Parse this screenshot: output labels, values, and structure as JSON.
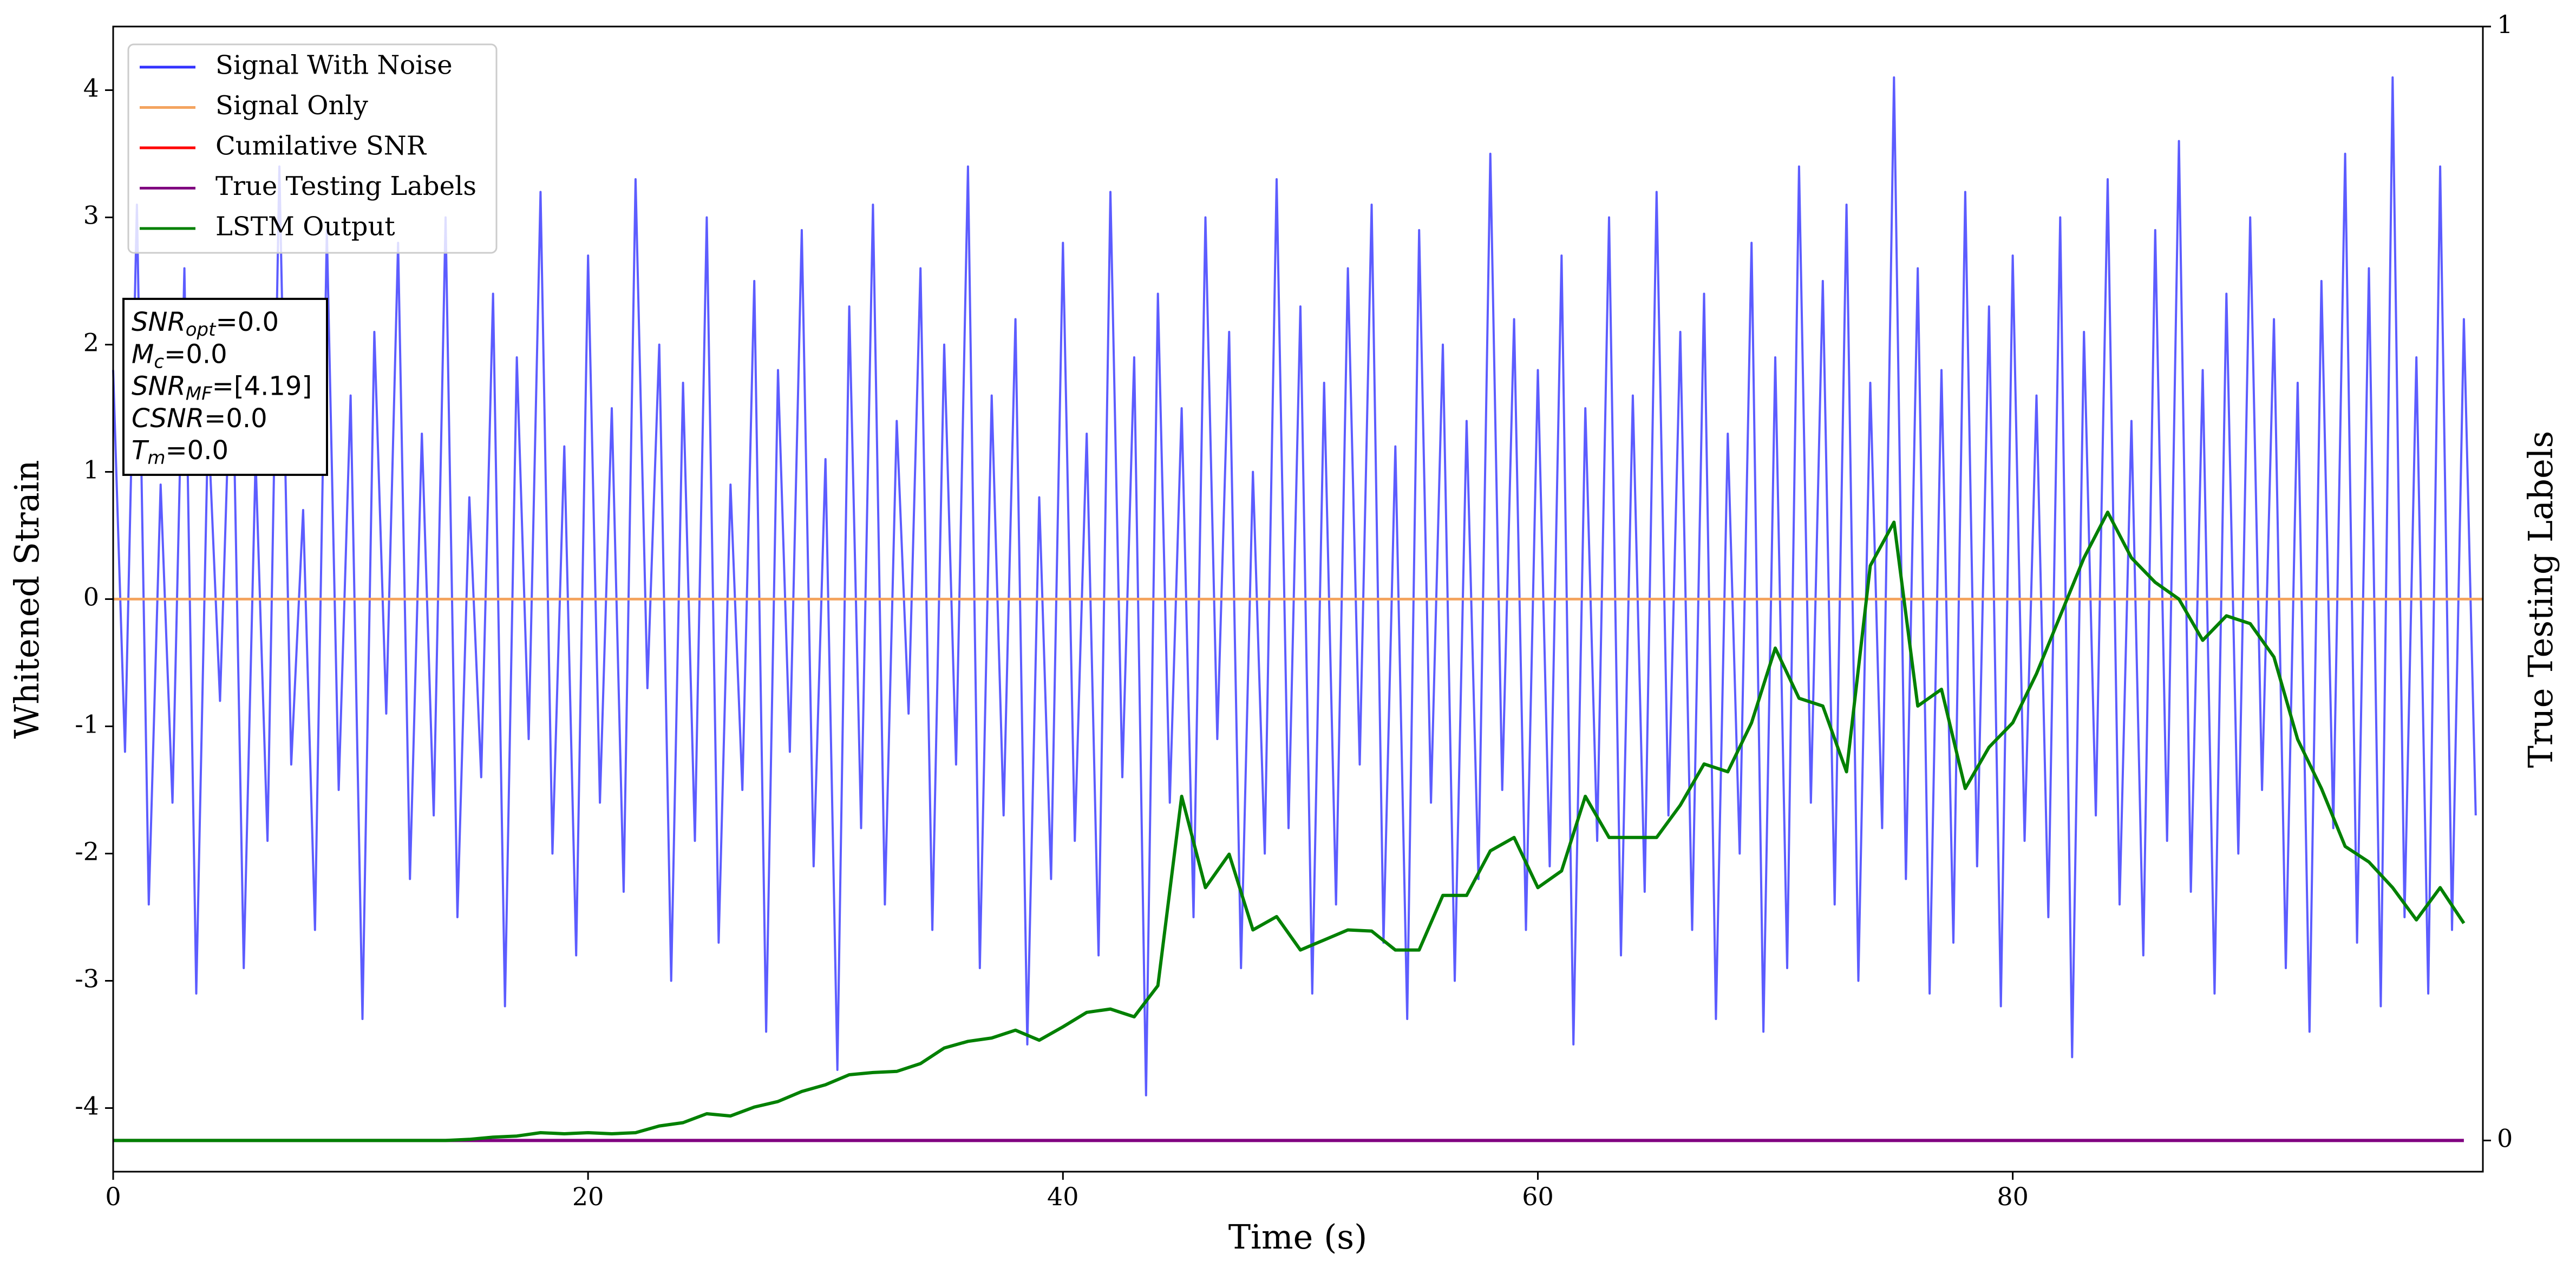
{
  "chart_data": {
    "type": "line",
    "xlabel": "Time (s)",
    "ylabel": "Whitened Strain",
    "y2label": "True Testing Labels",
    "xlim": [
      0,
      99.8
    ],
    "xticks": [
      0,
      20,
      40,
      60,
      80
    ],
    "ylim": [
      -4.5,
      4.5
    ],
    "yticks": [
      -4,
      -3,
      -2,
      -1,
      0,
      1,
      2,
      3,
      4
    ],
    "y2lim": [
      -0.028,
      1.0
    ],
    "y2ticks": [
      0,
      1
    ],
    "legend": "upper left",
    "series": [
      {
        "name": "Signal With Noise",
        "color": "#3333ff",
        "x": [
          0,
          0.5,
          1,
          1.5,
          2,
          2.5,
          3,
          3.5,
          4,
          4.5,
          5,
          5.5,
          6,
          6.5,
          7,
          7.5,
          8,
          8.5,
          9,
          9.5,
          10,
          10.5,
          11,
          11.5,
          12,
          12.5,
          13,
          13.5,
          14,
          14.5,
          15,
          15.5,
          16,
          16.5,
          17,
          17.5,
          18,
          18.5,
          19,
          19.5,
          20,
          20.5,
          21,
          21.5,
          22,
          22.5,
          23,
          23.5,
          24,
          24.5,
          25,
          25.5,
          26,
          26.5,
          27,
          27.5,
          28,
          28.5,
          29,
          29.5,
          30,
          30.5,
          31,
          31.5,
          32,
          32.5,
          33,
          33.5,
          34,
          34.5,
          35,
          35.5,
          36,
          36.5,
          37,
          37.5,
          38,
          38.5,
          39,
          39.5,
          40,
          40.5,
          41,
          41.5,
          42,
          42.5,
          43,
          43.5,
          44,
          44.5,
          45,
          45.5,
          46,
          46.5,
          47,
          47.5,
          48,
          48.5,
          49,
          49.5,
          50,
          50.5,
          51,
          51.5,
          52,
          52.5,
          53,
          53.5,
          54,
          54.5,
          55,
          55.5,
          56,
          56.5,
          57,
          57.5,
          58,
          58.5,
          59,
          59.5,
          60,
          60.5,
          61,
          61.5,
          62,
          62.5,
          63,
          63.5,
          64,
          64.5,
          65,
          65.5,
          66,
          66.5,
          67,
          67.5,
          68,
          68.5,
          69,
          69.5,
          70,
          70.5,
          71,
          71.5,
          72,
          72.5,
          73,
          73.5,
          74,
          74.5,
          75,
          75.5,
          76,
          76.5,
          77,
          77.5,
          78,
          78.5,
          79,
          79.5,
          80,
          80.5,
          81,
          81.5,
          82,
          82.5,
          83,
          83.5,
          84,
          84.5,
          85,
          85.5,
          86,
          86.5,
          87,
          87.5,
          88,
          88.5,
          89,
          89.5,
          90,
          90.5,
          91,
          91.5,
          92,
          92.5,
          93,
          93.5,
          94,
          94.5,
          95,
          95.5,
          96,
          96.5,
          97,
          97.5,
          98,
          98.5,
          99,
          99.5
        ],
        "values": [
          1.8,
          -1.2,
          3.1,
          -2.4,
          0.9,
          -1.6,
          2.6,
          -3.1,
          1.4,
          -0.8,
          2.2,
          -2.9,
          1.1,
          -1.9,
          3.4,
          -1.3,
          0.7,
          -2.6,
          2.9,
          -1.5,
          1.6,
          -3.3,
          2.1,
          -0.9,
          2.8,
          -2.2,
          1.3,
          -1.7,
          3.0,
          -2.5,
          0.8,
          -1.4,
          2.4,
          -3.2,
          1.9,
          -1.1,
          3.2,
          -2.0,
          1.2,
          -2.8,
          2.7,
          -1.6,
          1.5,
          -2.3,
          3.3,
          -0.7,
          2.0,
          -3.0,
          1.7,
          -1.9,
          3.0,
          -2.7,
          0.9,
          -1.5,
          2.5,
          -3.4,
          1.8,
          -1.2,
          2.9,
          -2.1,
          1.1,
          -3.7,
          2.3,
          -1.8,
          3.1,
          -2.4,
          1.4,
          -0.9,
          2.6,
          -2.6,
          2.0,
          -1.3,
          3.4,
          -2.9,
          1.6,
          -1.7,
          2.2,
          -3.5,
          0.8,
          -2.2,
          2.8,
          -1.9,
          1.3,
          -2.8,
          3.2,
          -1.4,
          1.9,
          -3.9,
          2.4,
          -1.6,
          1.5,
          -2.5,
          3.0,
          -1.1,
          2.1,
          -2.9,
          1.0,
          -2.0,
          3.3,
          -1.8,
          2.3,
          -3.1,
          1.7,
          -2.4,
          2.6,
          -1.3,
          3.1,
          -2.7,
          1.2,
          -3.3,
          2.9,
          -1.6,
          2.0,
          -3.0,
          1.4,
          -2.2,
          3.5,
          -1.5,
          2.2,
          -2.6,
          1.8,
          -2.1,
          2.7,
          -3.5,
          1.5,
          -1.9,
          3.0,
          -2.8,
          1.6,
          -2.3,
          3.2,
          -1.7,
          2.1,
          -2.6,
          2.4,
          -3.3,
          1.3,
          -2.0,
          2.8,
          -3.4,
          1.9,
          -2.9,
          3.4,
          -1.6,
          2.5,
          -2.4,
          3.1,
          -3.0,
          1.7,
          -1.8,
          4.1,
          -2.2,
          2.6,
          -3.1,
          1.8,
          -2.7,
          3.2,
          -2.1,
          2.3,
          -3.2,
          2.7,
          -1.9,
          1.6,
          -2.5,
          3.0,
          -3.6,
          2.1,
          -1.7,
          3.3,
          -2.4,
          1.4,
          -2.8,
          2.9,
          -1.9,
          3.6,
          -2.3,
          1.8,
          -3.1,
          2.4,
          -2.0,
          3.0,
          -1.5,
          2.2,
          -2.9,
          1.7,
          -3.4,
          2.5,
          -1.8,
          3.5,
          -2.7,
          2.6,
          -3.2,
          4.1,
          -2.5,
          1.9,
          -3.1,
          3.4,
          -2.6,
          2.2,
          -1.7
        ]
      },
      {
        "name": "Signal Only",
        "color": "#f4a460",
        "x": [
          0,
          99.8
        ],
        "values": [
          0,
          0
        ]
      },
      {
        "name": "Cumilative SNR",
        "color": "red",
        "x": [
          0,
          99.8
        ],
        "values": [
          0,
          0
        ]
      },
      {
        "name": "True Testing Labels",
        "color": "purple",
        "axis": "y2",
        "x": [
          0,
          99
        ],
        "values": [
          0,
          0
        ]
      },
      {
        "name": "LSTM Output",
        "color": "green",
        "axis": "y2",
        "x": [
          0,
          1,
          2,
          3,
          4,
          5,
          6,
          7,
          8,
          9,
          10,
          11,
          12,
          13,
          14,
          15,
          16,
          17,
          18,
          19,
          20,
          21,
          22,
          23,
          24,
          25,
          26,
          27,
          28,
          29,
          30,
          31,
          32,
          33,
          34,
          35,
          36,
          37,
          38,
          39,
          40,
          41,
          42,
          43,
          44,
          45,
          46,
          47,
          48,
          49,
          50,
          51,
          52,
          53,
          54,
          55,
          56,
          57,
          58,
          59,
          60,
          61,
          62,
          63,
          64,
          65,
          66,
          67,
          68,
          69,
          70,
          71,
          72,
          73,
          74,
          75,
          76,
          77,
          78,
          79,
          80,
          81,
          82,
          83,
          84,
          85,
          86,
          87,
          88,
          89,
          90,
          91,
          92,
          93,
          94,
          95,
          96,
          97,
          98,
          99
        ],
        "values": [
          0,
          0,
          0,
          0,
          0,
          0,
          0,
          0,
          0,
          0,
          0,
          0,
          0,
          0,
          0,
          0.001,
          0.003,
          0.004,
          0.007,
          0.006,
          0.007,
          0.006,
          0.007,
          0.013,
          0.016,
          0.024,
          0.022,
          0.03,
          0.035,
          0.044,
          0.05,
          0.059,
          0.061,
          0.062,
          0.069,
          0.083,
          0.089,
          0.092,
          0.099,
          0.09,
          0.102,
          0.115,
          0.118,
          0.111,
          0.139,
          0.309,
          0.227,
          0.257,
          0.189,
          0.201,
          0.171,
          0.18,
          0.189,
          0.188,
          0.171,
          0.171,
          0.22,
          0.22,
          0.26,
          0.272,
          0.227,
          0.242,
          0.309,
          0.272,
          0.272,
          0.272,
          0.301,
          0.338,
          0.331,
          0.375,
          0.442,
          0.397,
          0.39,
          0.331,
          0.516,
          0.555,
          0.39,
          0.405,
          0.316,
          0.353,
          0.375,
          0.419,
          0.471,
          0.523,
          0.564,
          0.523,
          0.501,
          0.486,
          0.449,
          0.471,
          0.464,
          0.434,
          0.36,
          0.316,
          0.264,
          0.25,
          0.227,
          0.198,
          0.227,
          0.195
        ]
      }
    ],
    "annotation": [
      {
        "symbol": "SNR",
        "sub": "opt",
        "text": "=0.0"
      },
      {
        "symbol": "M",
        "sub": "c",
        "text": "=0.0"
      },
      {
        "symbol": "SNR",
        "sub": "MF",
        "text": "=[4.19]"
      },
      {
        "symbol": "CSNR",
        "text": "=0.0"
      },
      {
        "symbol": "T",
        "sub": "m",
        "text": "=0.0"
      }
    ]
  }
}
